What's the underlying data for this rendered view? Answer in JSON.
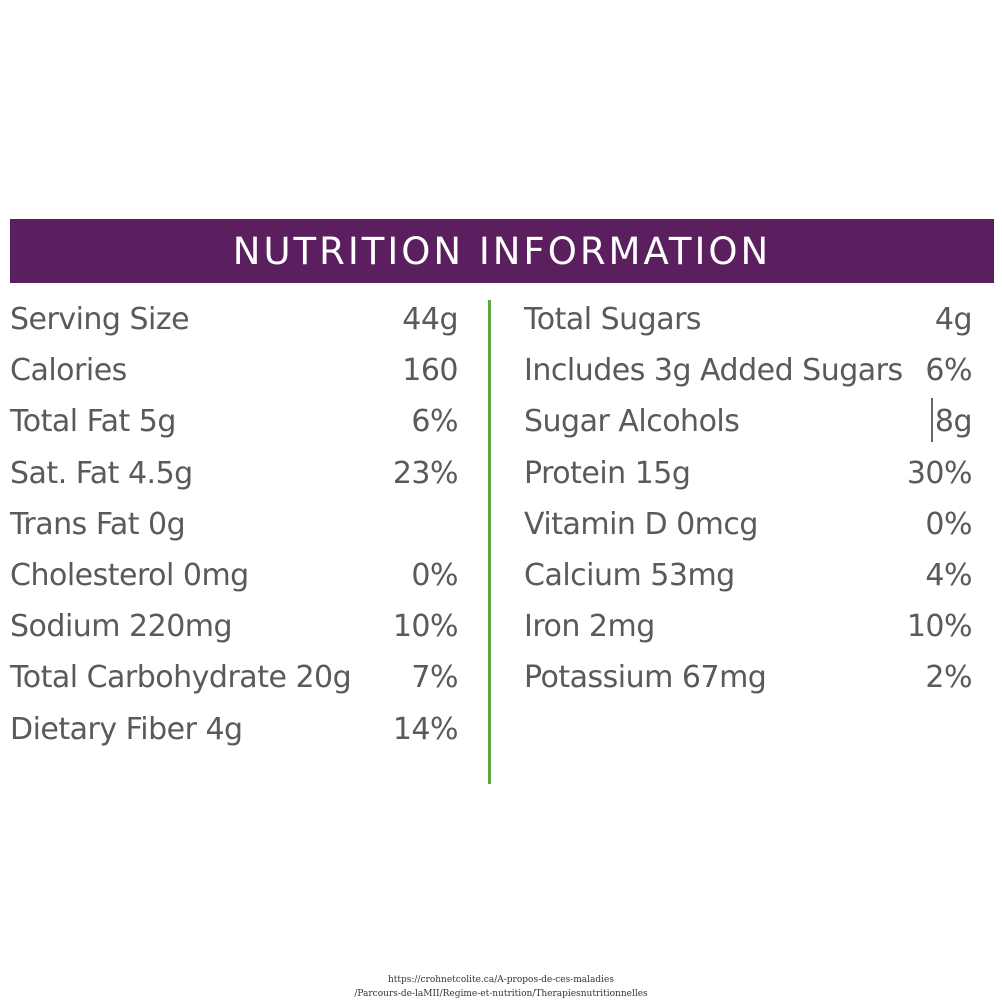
{
  "banner": {
    "title": "NUTRITION INFORMATION"
  },
  "left_rows": [
    {
      "label": "Serving Size",
      "value": "44g"
    },
    {
      "label": "Calories",
      "value": "160"
    },
    {
      "label": "Total Fat 5g",
      "value": "6%"
    },
    {
      "label": "Sat. Fat 4.5g",
      "value": "23%"
    },
    {
      "label": "Trans Fat 0g",
      "value": ""
    },
    {
      "label": "Cholesterol 0mg",
      "value": "0%"
    },
    {
      "label": "Sodium 220mg",
      "value": "10%"
    },
    {
      "label": "Total Carbohydrate 20g",
      "value": "7%"
    },
    {
      "label": "Dietary Fiber 4g",
      "value": "14%"
    }
  ],
  "right_rows": [
    {
      "label": "Total Sugars",
      "value": "4g"
    },
    {
      "label": "Includes 3g Added Sugars",
      "value": "6%"
    },
    {
      "label": "Sugar Alcohols",
      "value": "8g"
    },
    {
      "label": "Protein 15g",
      "value": "30%"
    },
    {
      "label": "Vitamin D 0mcg",
      "value": "0%"
    },
    {
      "label": "Calcium 53mg",
      "value": "4%"
    },
    {
      "label": "Iron 2mg",
      "value": "10%"
    },
    {
      "label": "Potassium 67mg",
      "value": "2%"
    }
  ],
  "footer": {
    "line1": "https://crohnetcolite.ca/A-propos-de-ces-maladies",
    "line2": "/Parcours-de-laMII/Regime-et-nutrition/Therapiesnutritionnelles"
  },
  "colors": {
    "banner": "#5b1f5f",
    "divider": "#5fa83f",
    "text": "#5a5a5a"
  }
}
